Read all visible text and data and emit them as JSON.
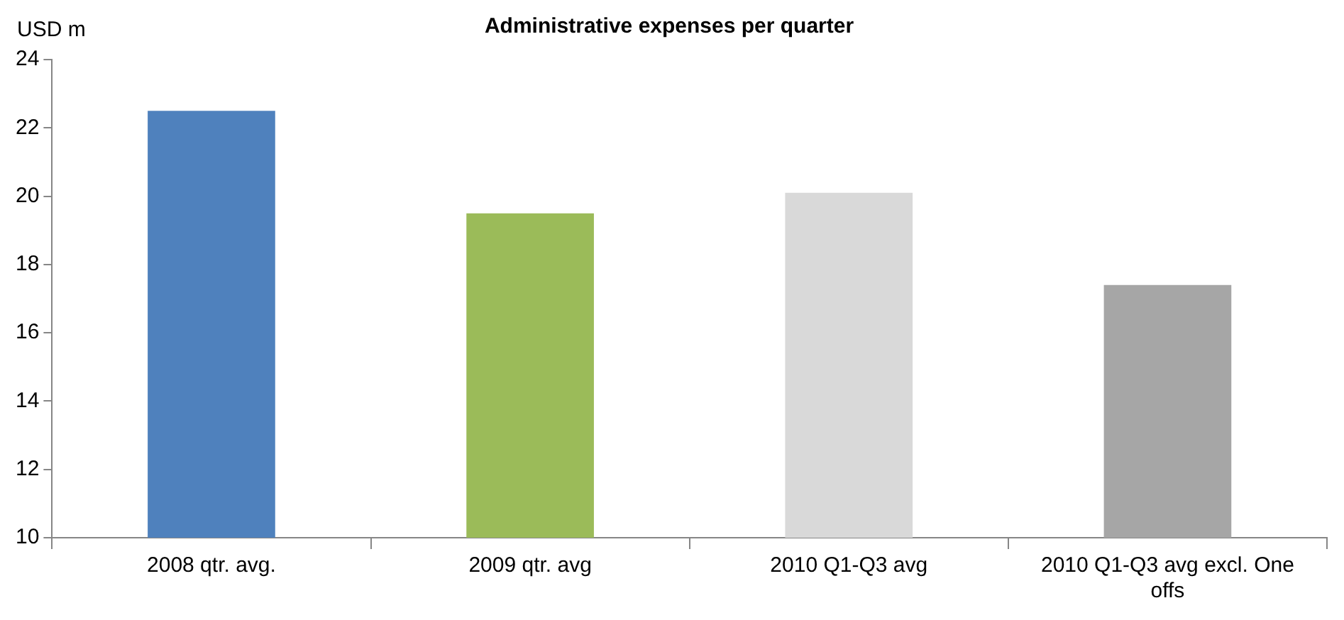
{
  "chart_data": {
    "type": "bar",
    "title": "Administrative expenses per quarter",
    "ylabel": "USD m",
    "categories": [
      "2008 qtr. avg.",
      "2009 qtr. avg",
      "2010 Q1-Q3 avg",
      "2010 Q1-Q3 avg excl. One offs"
    ],
    "values": [
      22.5,
      19.5,
      20.1,
      17.4
    ],
    "colors": [
      "#4f81bd",
      "#9bbb59",
      "#d9d9d9",
      "#a6a6a6"
    ],
    "ylim": [
      10,
      24
    ],
    "yticks": [
      10,
      12,
      14,
      16,
      18,
      20,
      22,
      24
    ],
    "grid": false,
    "legend": false
  }
}
